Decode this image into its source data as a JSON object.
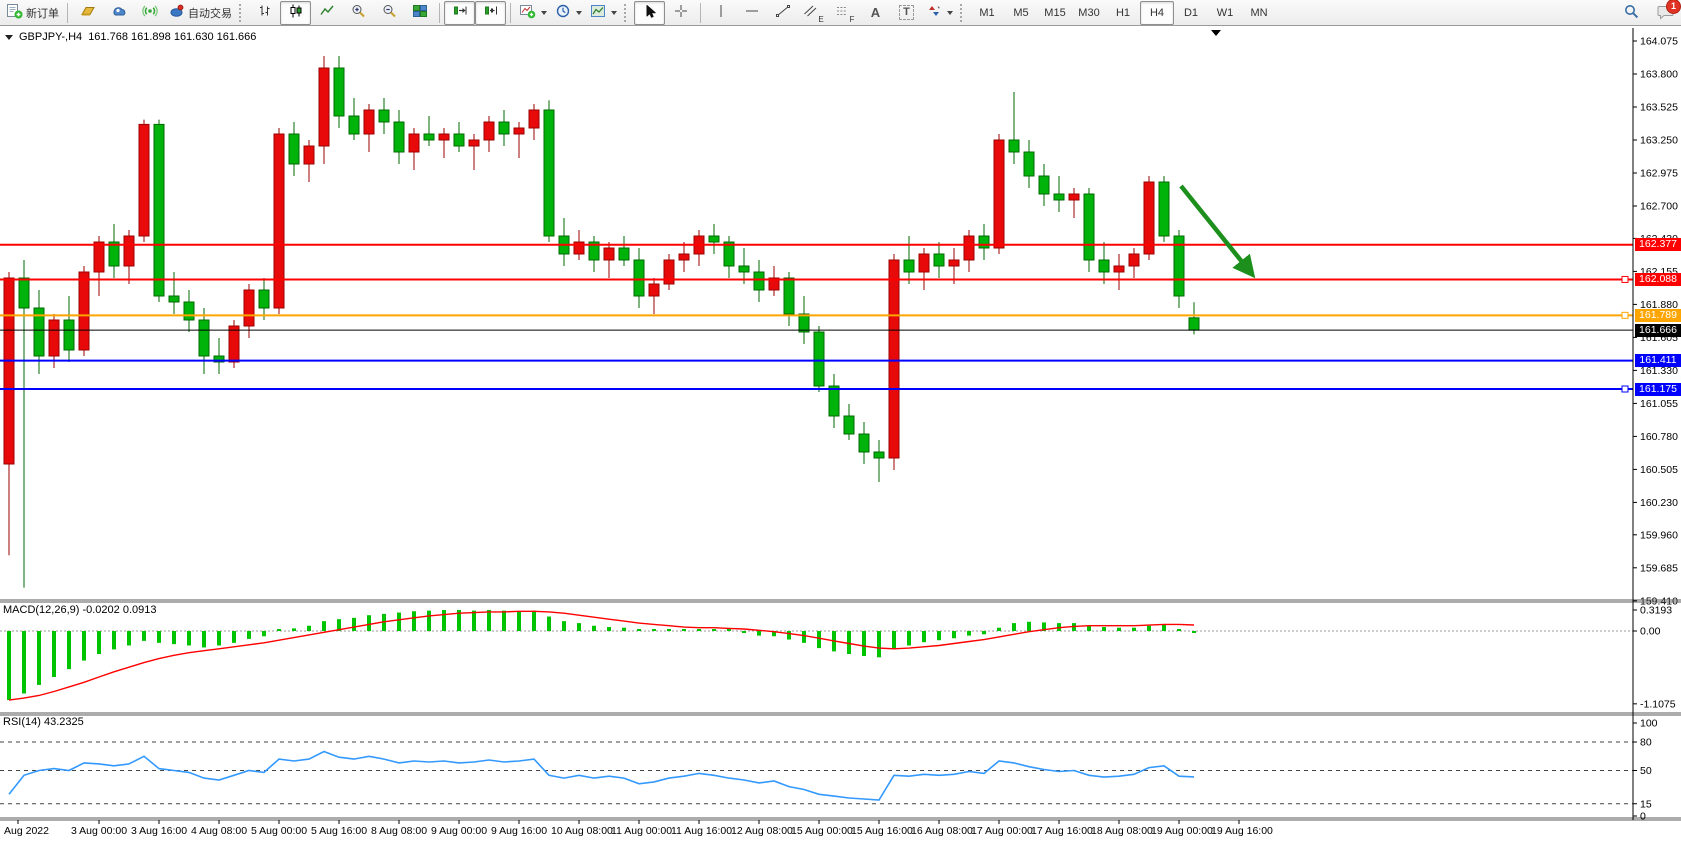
{
  "toolbar": {
    "new_order_label": "新订单",
    "auto_trading_label": "自动交易",
    "tool_letters": {
      "text": "A",
      "label": "T",
      "channel": "E",
      "fibo": "F"
    },
    "timeframes": [
      "M1",
      "M5",
      "M15",
      "M30",
      "H1",
      "H4",
      "D1",
      "W1",
      "MN"
    ],
    "active_timeframe": "H4",
    "notification_badge": "1"
  },
  "chart": {
    "title": "GBPJPY-,H4",
    "ohlc_line": "161.768 161.898 161.630 161.666",
    "hlines": [
      {
        "price": "162.377",
        "color": "#FF0000",
        "handle": false
      },
      {
        "price": "162.088",
        "color": "#FF0000",
        "handle": true
      },
      {
        "price": "161.789",
        "color": "#FFA500",
        "handle": true
      },
      {
        "price": "161.666",
        "color": "#000000",
        "handle": false,
        "current": true
      },
      {
        "price": "161.411",
        "color": "#0000FF",
        "handle": false
      },
      {
        "price": "161.175",
        "color": "#0000FF",
        "handle": true
      }
    ],
    "price_ticks": [
      "164.075",
      "163.800",
      "163.525",
      "163.250",
      "162.975",
      "162.700",
      "162.430",
      "162.155",
      "161.880",
      "161.605",
      "161.330",
      "161.055",
      "160.780",
      "160.505",
      "160.230",
      "159.960",
      "159.685",
      "159.410"
    ],
    "time_ticks": [
      "Aug 2022",
      "3 Aug 00:00",
      "3 Aug 16:00",
      "4 Aug 08:00",
      "5 Aug 00:00",
      "5 Aug 16:00",
      "8 Aug 08:00",
      "9 Aug 00:00",
      "9 Aug 16:00",
      "10 Aug 08:00",
      "11 Aug 00:00",
      "11 Aug 16:00",
      "12 Aug 08:00",
      "15 Aug 00:00",
      "15 Aug 16:00",
      "16 Aug 08:00",
      "17 Aug 00:00",
      "17 Aug 16:00",
      "18 Aug 08:00",
      "19 Aug 00:00",
      "19 Aug 16:00"
    ]
  },
  "macd_panel": {
    "label": "MACD(12,26,9) -0.0202 0.0913",
    "ticks": [
      "0.3193",
      "0.00",
      "-1.1075"
    ]
  },
  "rsi_panel": {
    "label": "RSI(14) 43.2325",
    "ticks": [
      "100",
      "80",
      "50",
      "15",
      "0"
    ],
    "dashed_levels": [
      80,
      50,
      15
    ]
  },
  "chart_data": {
    "type": "candlestick",
    "symbol": "GBPJPY-",
    "period": "H4",
    "start": "2 Aug 2022 00:00",
    "interval_hours": 4,
    "up_color": "#E80A0A",
    "down_color": "#00B30B",
    "price_axis_range": [
      159.41,
      164.075
    ],
    "candles_ohlc": [
      [
        160.55,
        162.15,
        159.79,
        162.1
      ],
      [
        162.1,
        162.25,
        159.52,
        161.85
      ],
      [
        161.85,
        162.0,
        161.3,
        161.45
      ],
      [
        161.45,
        161.8,
        161.35,
        161.75
      ],
      [
        161.75,
        161.95,
        161.4,
        161.5
      ],
      [
        161.5,
        162.2,
        161.45,
        162.15
      ],
      [
        162.15,
        162.45,
        161.95,
        162.4
      ],
      [
        162.4,
        162.55,
        162.1,
        162.2
      ],
      [
        162.2,
        162.5,
        162.05,
        162.45
      ],
      [
        162.45,
        163.42,
        162.4,
        163.38
      ],
      [
        163.38,
        163.42,
        161.9,
        161.95
      ],
      [
        161.95,
        162.15,
        161.8,
        161.9
      ],
      [
        161.9,
        162.0,
        161.65,
        161.75
      ],
      [
        161.75,
        161.85,
        161.3,
        161.45
      ],
      [
        161.45,
        161.6,
        161.3,
        161.4
      ],
      [
        161.4,
        161.75,
        161.35,
        161.7
      ],
      [
        161.7,
        162.05,
        161.6,
        162.0
      ],
      [
        162.0,
        162.1,
        161.75,
        161.85
      ],
      [
        161.85,
        163.35,
        161.8,
        163.3
      ],
      [
        163.3,
        163.4,
        162.95,
        163.05
      ],
      [
        163.05,
        163.25,
        162.9,
        163.2
      ],
      [
        163.2,
        163.95,
        163.05,
        163.85
      ],
      [
        163.85,
        163.95,
        163.35,
        163.45
      ],
      [
        163.45,
        163.6,
        163.25,
        163.3
      ],
      [
        163.3,
        163.55,
        163.15,
        163.5
      ],
      [
        163.5,
        163.6,
        163.3,
        163.4
      ],
      [
        163.4,
        163.5,
        163.05,
        163.15
      ],
      [
        163.15,
        163.35,
        163.0,
        163.3
      ],
      [
        163.3,
        163.45,
        163.2,
        163.25
      ],
      [
        163.25,
        163.35,
        163.1,
        163.3
      ],
      [
        163.3,
        163.4,
        163.15,
        163.2
      ],
      [
        163.2,
        163.3,
        163.0,
        163.25
      ],
      [
        163.25,
        163.45,
        163.15,
        163.4
      ],
      [
        163.4,
        163.5,
        163.2,
        163.3
      ],
      [
        163.3,
        163.4,
        163.1,
        163.35
      ],
      [
        163.35,
        163.55,
        163.25,
        163.5
      ],
      [
        163.5,
        163.58,
        162.4,
        162.45
      ],
      [
        162.45,
        162.6,
        162.2,
        162.3
      ],
      [
        162.3,
        162.5,
        162.25,
        162.4
      ],
      [
        162.4,
        162.45,
        162.15,
        162.25
      ],
      [
        162.25,
        162.4,
        162.1,
        162.35
      ],
      [
        162.35,
        162.45,
        162.2,
        162.25
      ],
      [
        162.25,
        162.35,
        161.85,
        161.95
      ],
      [
        161.95,
        162.1,
        161.8,
        162.05
      ],
      [
        162.05,
        162.3,
        162.0,
        162.25
      ],
      [
        162.25,
        162.4,
        162.15,
        162.3
      ],
      [
        162.3,
        162.5,
        162.2,
        162.45
      ],
      [
        162.45,
        162.55,
        162.3,
        162.4
      ],
      [
        162.4,
        162.45,
        162.1,
        162.2
      ],
      [
        162.2,
        162.35,
        162.05,
        162.15
      ],
      [
        162.15,
        162.25,
        161.9,
        162.0
      ],
      [
        162.0,
        162.2,
        161.95,
        162.1
      ],
      [
        162.1,
        162.15,
        161.7,
        161.8
      ],
      [
        161.8,
        161.95,
        161.55,
        161.65
      ],
      [
        161.65,
        161.7,
        161.15,
        161.2
      ],
      [
        161.2,
        161.3,
        160.85,
        160.95
      ],
      [
        160.95,
        161.05,
        160.75,
        160.8
      ],
      [
        160.8,
        160.9,
        160.55,
        160.65
      ],
      [
        160.65,
        160.75,
        160.4,
        160.6
      ],
      [
        160.6,
        162.3,
        160.5,
        162.25
      ],
      [
        162.25,
        162.45,
        162.05,
        162.15
      ],
      [
        162.15,
        162.35,
        162.0,
        162.3
      ],
      [
        162.3,
        162.4,
        162.1,
        162.2
      ],
      [
        162.2,
        162.35,
        162.05,
        162.25
      ],
      [
        162.25,
        162.5,
        162.15,
        162.45
      ],
      [
        162.45,
        162.55,
        162.25,
        162.35
      ],
      [
        162.35,
        163.3,
        162.3,
        163.25
      ],
      [
        163.25,
        163.65,
        163.05,
        163.15
      ],
      [
        163.15,
        163.25,
        162.85,
        162.95
      ],
      [
        162.95,
        163.05,
        162.7,
        162.8
      ],
      [
        162.8,
        162.95,
        162.65,
        162.75
      ],
      [
        162.75,
        162.85,
        162.6,
        162.8
      ],
      [
        162.8,
        162.85,
        162.15,
        162.25
      ],
      [
        162.25,
        162.4,
        162.05,
        162.15
      ],
      [
        162.15,
        162.3,
        162.0,
        162.2
      ],
      [
        162.2,
        162.35,
        162.1,
        162.3
      ],
      [
        162.3,
        162.95,
        162.25,
        162.9
      ],
      [
        162.9,
        162.95,
        162.4,
        162.45
      ],
      [
        162.45,
        162.5,
        161.85,
        161.95
      ],
      [
        161.768,
        161.898,
        161.63,
        161.666
      ]
    ],
    "macd": {
      "hist_color": "#00C400",
      "signal_color": "#FF0000",
      "current_macd": -0.0202,
      "current_signal": 0.0913,
      "histogram": [
        -1.05,
        -0.95,
        -0.82,
        -0.7,
        -0.58,
        -0.45,
        -0.35,
        -0.28,
        -0.22,
        -0.15,
        -0.18,
        -0.2,
        -0.22,
        -0.25,
        -0.22,
        -0.18,
        -0.12,
        -0.08,
        0.0,
        0.04,
        0.08,
        0.15,
        0.18,
        0.2,
        0.24,
        0.26,
        0.28,
        0.3,
        0.31,
        0.32,
        0.32,
        0.31,
        0.32,
        0.31,
        0.3,
        0.31,
        0.22,
        0.15,
        0.12,
        0.08,
        0.06,
        0.05,
        0.02,
        0.0,
        0.01,
        0.02,
        0.03,
        0.03,
        0.0,
        -0.03,
        -0.07,
        -0.08,
        -0.13,
        -0.18,
        -0.26,
        -0.31,
        -0.35,
        -0.38,
        -0.4,
        -0.28,
        -0.22,
        -0.17,
        -0.14,
        -0.11,
        -0.07,
        -0.05,
        0.05,
        0.12,
        0.14,
        0.13,
        0.12,
        0.12,
        0.08,
        0.06,
        0.05,
        0.05,
        0.08,
        0.1,
        0.02,
        -0.0202
      ],
      "signal": [
        -1.05,
        -1.02,
        -0.98,
        -0.92,
        -0.85,
        -0.78,
        -0.7,
        -0.62,
        -0.55,
        -0.48,
        -0.42,
        -0.37,
        -0.33,
        -0.3,
        -0.27,
        -0.24,
        -0.21,
        -0.18,
        -0.14,
        -0.1,
        -0.06,
        -0.02,
        0.02,
        0.06,
        0.1,
        0.14,
        0.17,
        0.2,
        0.23,
        0.25,
        0.27,
        0.28,
        0.29,
        0.29,
        0.3,
        0.3,
        0.29,
        0.27,
        0.24,
        0.21,
        0.18,
        0.15,
        0.12,
        0.1,
        0.08,
        0.06,
        0.05,
        0.05,
        0.04,
        0.03,
        0.01,
        -0.01,
        -0.04,
        -0.07,
        -0.11,
        -0.15,
        -0.19,
        -0.23,
        -0.26,
        -0.27,
        -0.26,
        -0.24,
        -0.22,
        -0.19,
        -0.16,
        -0.13,
        -0.09,
        -0.05,
        -0.01,
        0.02,
        0.05,
        0.07,
        0.08,
        0.08,
        0.08,
        0.08,
        0.09,
        0.1,
        0.1,
        0.0913
      ],
      "axis_range": [
        -1.1075,
        0.3193
      ]
    },
    "rsi": {
      "color": "#3399FF",
      "current": 43.2325,
      "values": [
        25,
        45,
        50,
        52,
        50,
        58,
        57,
        55,
        57,
        65,
        52,
        50,
        48,
        42,
        40,
        45,
        50,
        48,
        62,
        60,
        62,
        70,
        64,
        62,
        65,
        62,
        58,
        60,
        59,
        60,
        58,
        59,
        61,
        59,
        60,
        62,
        45,
        42,
        45,
        42,
        44,
        42,
        36,
        38,
        42,
        44,
        47,
        45,
        42,
        40,
        37,
        39,
        33,
        30,
        25,
        23,
        21,
        20,
        19,
        45,
        44,
        46,
        45,
        46,
        49,
        47,
        60,
        58,
        54,
        51,
        49,
        50,
        45,
        43,
        44,
        46,
        53,
        55,
        44,
        43.2325
      ],
      "axis_range": [
        0,
        100
      ]
    },
    "annotation_arrow": {
      "color": "#1C8F1C",
      "meaning": "bearish projection arrow"
    }
  }
}
